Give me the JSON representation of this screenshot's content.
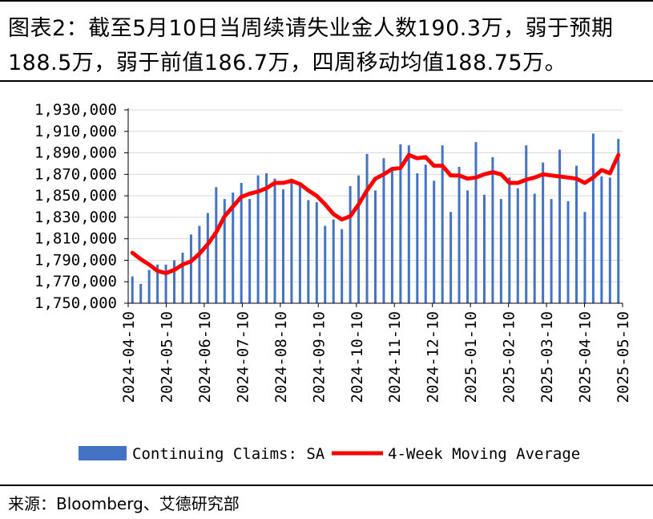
{
  "title": "图表2：截至5月10日当周续请失业金人数190.3万，弱于预期188.5万，弱于前值186.7万，四周移动均值188.75万。",
  "source": "来源：Bloomberg、艾德研究部",
  "colors": {
    "bar": "#4472C4",
    "line": "#FF0000",
    "axis": "#000000"
  },
  "chart_data": {
    "type": "bar",
    "title": "",
    "xlabel": "",
    "ylabel": "",
    "ylim": [
      1750000,
      1930000
    ],
    "yticks": [
      1750000,
      1770000,
      1790000,
      1810000,
      1830000,
      1850000,
      1870000,
      1890000,
      1910000,
      1930000
    ],
    "ytick_labels": [
      "1,750,000",
      "1,770,000",
      "1,790,000",
      "1,810,000",
      "1,830,000",
      "1,850,000",
      "1,870,000",
      "1,890,000",
      "1,910,000",
      "1,930,000"
    ],
    "xticks": [
      "2024-04-10",
      "2024-05-10",
      "2024-06-10",
      "2024-07-10",
      "2024-08-10",
      "2024-09-10",
      "2024-10-10",
      "2024-11-10",
      "2024-12-10",
      "2025-01-10",
      "2025-02-10",
      "2025-03-10",
      "2025-04-10",
      "2025-05-10"
    ],
    "legend": [
      "Continuing Claims: SA",
      "4-Week Moving Average"
    ],
    "legend_position": "bottom",
    "series": [
      {
        "name": "Continuing Claims: SA",
        "type": "bar",
        "values": [
          1775000,
          1768000,
          1781000,
          1786000,
          1786000,
          1790000,
          1797000,
          1814000,
          1822000,
          1834000,
          1858000,
          1847000,
          1853000,
          1862000,
          1847000,
          1869000,
          1871000,
          1866000,
          1856000,
          1866000,
          1861000,
          1846000,
          1844000,
          1822000,
          1828000,
          1819000,
          1859000,
          1869000,
          1889000,
          1855000,
          1885000,
          1876000,
          1898000,
          1897000,
          1871000,
          1879000,
          1864000,
          1897000,
          1835000,
          1877000,
          1855000,
          1900000,
          1851000,
          1886000,
          1847000,
          1867000,
          1857000,
          1897000,
          1852000,
          1881000,
          1847000,
          1893000,
          1845000,
          1878000,
          1835000,
          1908000,
          1868000,
          1867000,
          1903000
        ]
      },
      {
        "name": "4-Week Moving Average",
        "type": "line",
        "values": [
          1797000,
          1791000,
          1786000,
          1780000,
          1778000,
          1781000,
          1786000,
          1789000,
          1796000,
          1805000,
          1816000,
          1831000,
          1840000,
          1849000,
          1852000,
          1854000,
          1857000,
          1862000,
          1862000,
          1864000,
          1861000,
          1855000,
          1850000,
          1842000,
          1833000,
          1828000,
          1831000,
          1842000,
          1855000,
          1866000,
          1870000,
          1875000,
          1876000,
          1888000,
          1885000,
          1886000,
          1878000,
          1878000,
          1869000,
          1869000,
          1866000,
          1867000,
          1870000,
          1872000,
          1870000,
          1862000,
          1862000,
          1865000,
          1867000,
          1870000,
          1869000,
          1868000,
          1867000,
          1866000,
          1862000,
          1867000,
          1874000,
          1871000,
          1888000
        ]
      }
    ]
  }
}
